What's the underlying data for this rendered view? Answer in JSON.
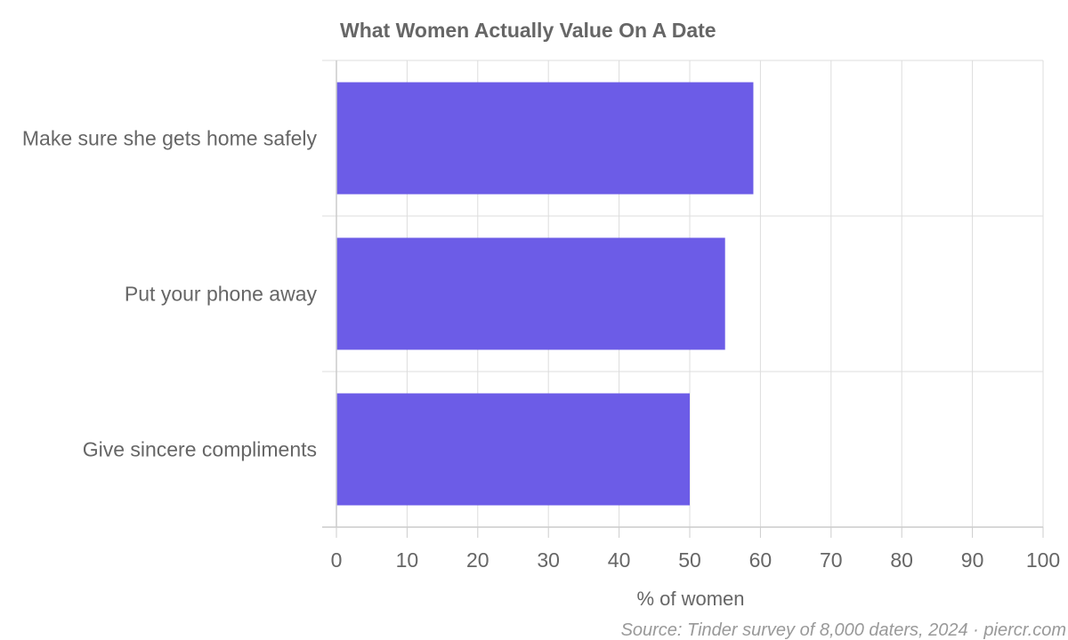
{
  "chart_data": {
    "type": "bar",
    "orientation": "horizontal",
    "title": "What Women Actually Value On A Date",
    "categories": [
      "Make sure she gets home safely",
      "Put your phone away",
      "Give sincere compliments"
    ],
    "values": [
      59,
      55,
      50
    ],
    "xlabel": "% of women",
    "ylabel": "",
    "xlim": [
      0,
      100
    ],
    "xticks": [
      "0",
      "10",
      "20",
      "30",
      "40",
      "50",
      "60",
      "70",
      "80",
      "90",
      "100"
    ],
    "grid": true,
    "bar_color": "#6c5ce7"
  },
  "source": "Source: Tinder survey of 8,000 daters, 2024 · piercr.com"
}
